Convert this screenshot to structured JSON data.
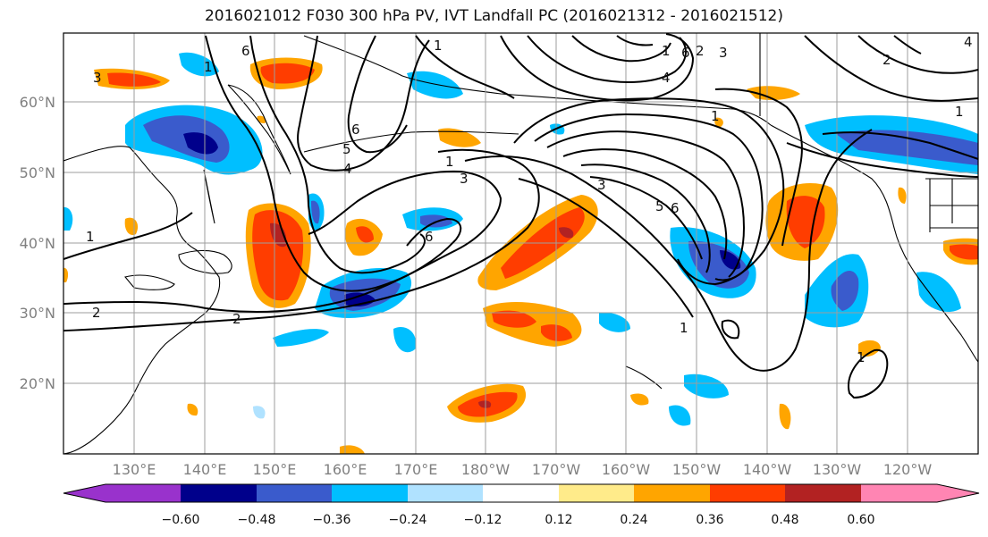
{
  "title": "2016021012 F030 300 hPa PV, IVT Landfall PC (2016021312 - 2016021512)",
  "lat_labels": [
    "60°N",
    "50°N",
    "40°N",
    "30°N",
    "20°N"
  ],
  "lon_labels": [
    "130°E",
    "140°E",
    "150°E",
    "160°E",
    "170°E",
    "180°W",
    "170°W",
    "160°W",
    "150°W",
    "140°W",
    "130°W",
    "120°W"
  ],
  "contour_labels": [
    "3",
    "6",
    "1",
    "6",
    "5",
    "4",
    "1",
    "1",
    "3",
    "2",
    "3",
    "4",
    "5",
    "6",
    "6",
    "2",
    "2",
    "1",
    "1",
    "1",
    "6",
    "3",
    "4",
    "1",
    "1",
    "2",
    "4",
    "3",
    "6",
    "1",
    "1"
  ],
  "colorbar": {
    "colors": [
      "#9932CC",
      "#00008B",
      "#3A5BCC",
      "#00BFFF",
      "#B0E2FF",
      "#FFFFFF",
      "#FFEB8A",
      "#FFA500",
      "#FF3D00",
      "#B22222",
      "#FF85B3"
    ],
    "ticks": [
      "−0.60",
      "−0.48",
      "−0.36",
      "−0.24",
      "−0.12",
      "0.12",
      "0.24",
      "0.36",
      "0.48",
      "0.60"
    ]
  },
  "colors": {
    "grid": "#9e9e9e",
    "contour": "#000000",
    "coast": "#000000"
  }
}
